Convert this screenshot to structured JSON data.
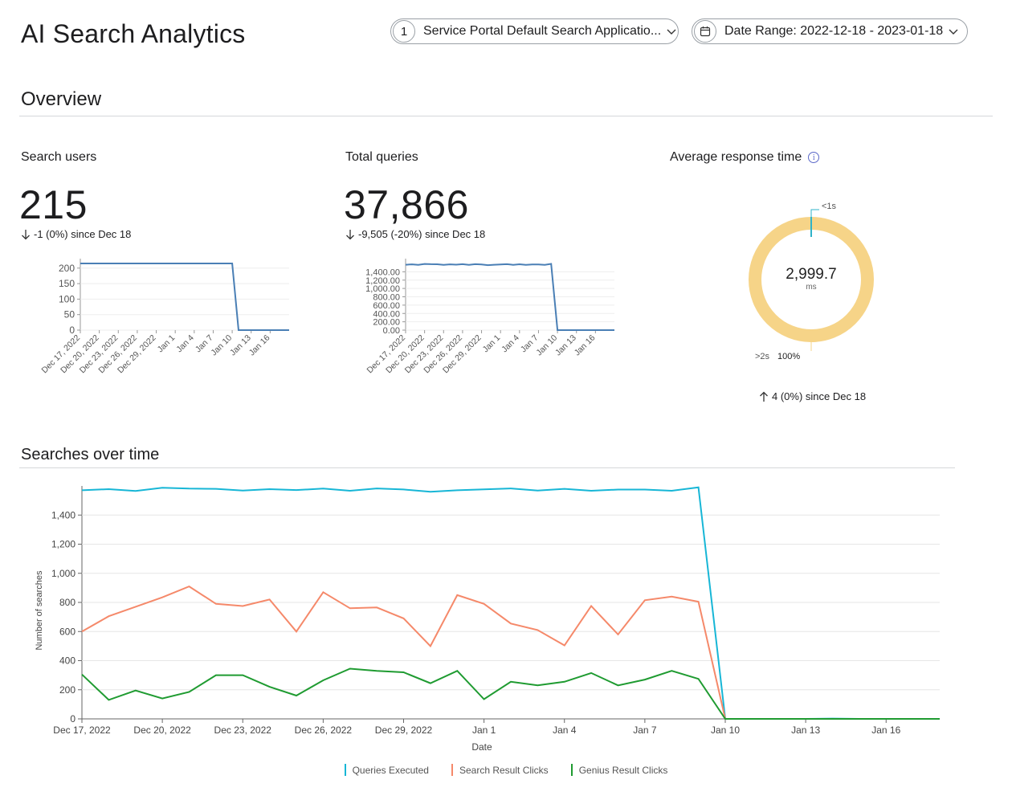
{
  "header": {
    "title": "AI Search Analytics",
    "app_count": "1",
    "app_label": "Service Portal Default Search Applicatio...",
    "date_range_label": "Date Range: 2022-12-18 - 2023-01-18"
  },
  "overview": {
    "title": "Overview",
    "search_users": {
      "label": "Search users",
      "value": "215",
      "delta": "-1 (0%) since Dec 18",
      "direction": "down"
    },
    "total_queries": {
      "label": "Total queries",
      "value": "37,866",
      "delta": "-9,505 (-20%) since Dec 18",
      "direction": "down"
    },
    "avg_response": {
      "label": "Average response time",
      "value": "2,999.7",
      "unit": "ms",
      "lt_label": "<1s",
      "gt_label": ">2s",
      "gt_percent": "100%",
      "delta": "4 (0%) since Dec 18",
      "direction": "up"
    }
  },
  "searches_over_time": {
    "title": "Searches over time"
  },
  "colors": {
    "line_blue": "#4a7fb5",
    "queries": "#17b6d6",
    "search_clicks": "#f5896a",
    "genius_clicks": "#1f9b31",
    "donut": "#f6d488",
    "donut_small": "#2fb3c8"
  },
  "chart_data": [
    {
      "type": "line",
      "name": "search-users-mini",
      "x_tick_labels": [
        "Dec 17, 2022",
        "Dec 20, 2022",
        "Dec 23, 2022",
        "Dec 26, 2022",
        "Dec 29, 2022",
        "Jan 1",
        "Jan 4",
        "Jan 7",
        "Jan 10",
        "Jan 13",
        "Jan 16"
      ],
      "y_ticks": [
        "0",
        "50",
        "100",
        "150",
        "200"
      ],
      "ylim": [
        0,
        215
      ],
      "x": [
        0,
        1,
        2,
        3,
        4,
        5,
        6,
        7,
        8,
        9,
        10,
        11,
        12,
        13,
        14,
        15,
        16,
        17,
        18,
        19,
        20,
        21,
        22,
        23,
        24,
        25,
        26,
        27,
        28,
        29,
        30,
        31,
        32,
        33
      ],
      "values": [
        215,
        215,
        215,
        215,
        215,
        215,
        215,
        215,
        215,
        215,
        215,
        215,
        215,
        215,
        215,
        215,
        215,
        215,
        215,
        215,
        215,
        215,
        215,
        215,
        215,
        0,
        0,
        0,
        0,
        0,
        0,
        0,
        0,
        0
      ]
    },
    {
      "type": "line",
      "name": "total-queries-mini",
      "x_tick_labels": [
        "Dec 17, 2022",
        "Dec 20, 2022",
        "Dec 23, 2022",
        "Dec 26, 2022",
        "Dec 29, 2022",
        "Jan 1",
        "Jan 4",
        "Jan 7",
        "Jan 10",
        "Jan 13",
        "Jan 16"
      ],
      "y_ticks": [
        "0.00",
        "200.00",
        "400.00",
        "600.00",
        "800.00",
        "1,000.00",
        "1,200.00",
        "1,400.00"
      ],
      "ylim": [
        0,
        1600
      ],
      "x": [
        0,
        1,
        2,
        3,
        4,
        5,
        6,
        7,
        8,
        9,
        10,
        11,
        12,
        13,
        14,
        15,
        16,
        17,
        18,
        19,
        20,
        21,
        22,
        23,
        24,
        25,
        26,
        27,
        28,
        29,
        30,
        31,
        32,
        33
      ],
      "values": [
        1570,
        1578,
        1565,
        1588,
        1582,
        1580,
        1568,
        1578,
        1572,
        1582,
        1567,
        1583,
        1576,
        1560,
        1570,
        1577,
        1583,
        1568,
        1580,
        1567,
        1575,
        1575,
        1567,
        1590,
        0,
        0,
        0,
        0,
        0,
        0,
        0,
        0,
        0,
        0
      ]
    },
    {
      "type": "pie",
      "name": "average-response-donut",
      "slices": [
        {
          "label": "<1s",
          "value": 0
        },
        {
          "label": ">2s",
          "value": 100
        }
      ],
      "center_value": "2,999.7",
      "center_unit": "ms"
    },
    {
      "type": "line",
      "name": "searches-over-time",
      "xlabel": "Date",
      "ylabel": "Number of searches",
      "x_tick_labels": [
        "Dec 17, 2022",
        "Dec 20, 2022",
        "Dec 23, 2022",
        "Dec 26, 2022",
        "Dec 29, 2022",
        "Jan 1",
        "Jan 4",
        "Jan 7",
        "Jan 10",
        "Jan 13",
        "Jan 16"
      ],
      "y_ticks": [
        "0",
        "200",
        "400",
        "600",
        "800",
        "1,000",
        "1,200",
        "1,400"
      ],
      "ylim": [
        0,
        1600
      ],
      "grid": true,
      "legend_position": "bottom-center",
      "x": [
        0,
        1,
        2,
        3,
        4,
        5,
        6,
        7,
        8,
        9,
        10,
        11,
        12,
        13,
        14,
        15,
        16,
        17,
        18,
        19,
        20,
        21,
        22,
        23,
        24,
        25,
        26,
        27,
        28,
        29,
        30,
        31,
        32
      ],
      "series": [
        {
          "name": "Queries Executed",
          "color": "#17b6d6",
          "values": [
            1570,
            1578,
            1565,
            1588,
            1582,
            1580,
            1568,
            1578,
            1572,
            1582,
            1567,
            1583,
            1576,
            1560,
            1570,
            1577,
            1583,
            1568,
            1580,
            1567,
            1575,
            1575,
            1567,
            1590,
            0,
            0,
            0,
            0,
            2,
            0,
            0,
            0,
            0
          ]
        },
        {
          "name": "Search Result Clicks",
          "color": "#f5896a",
          "values": [
            600,
            705,
            770,
            835,
            910,
            790,
            775,
            820,
            600,
            870,
            760,
            765,
            690,
            500,
            850,
            790,
            655,
            610,
            505,
            775,
            580,
            815,
            840,
            805,
            0,
            0,
            0,
            0,
            0,
            0,
            0,
            0,
            0
          ]
        },
        {
          "name": "Genius Result Clicks",
          "color": "#1f9b31",
          "values": [
            305,
            130,
            195,
            140,
            185,
            300,
            300,
            220,
            160,
            265,
            345,
            330,
            320,
            245,
            330,
            135,
            255,
            230,
            255,
            315,
            230,
            270,
            330,
            275,
            0,
            0,
            0,
            0,
            0,
            0,
            0,
            0,
            0
          ]
        }
      ]
    }
  ]
}
